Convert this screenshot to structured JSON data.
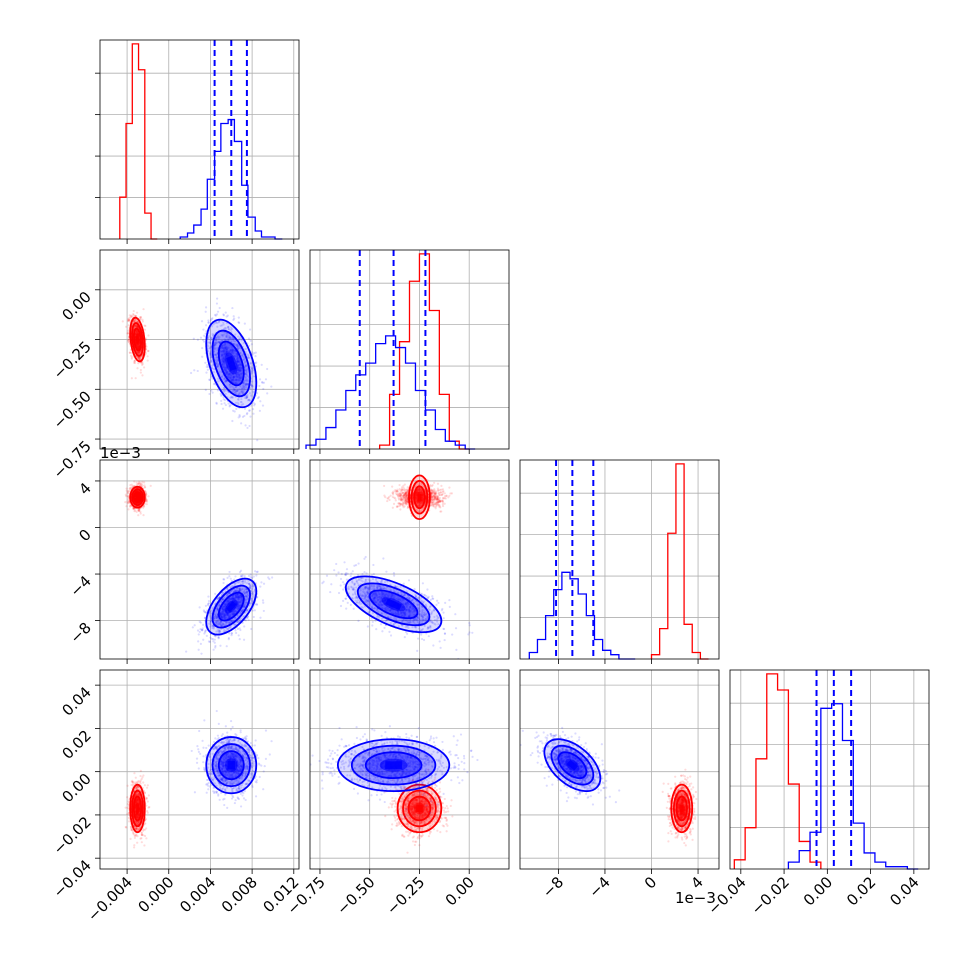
{
  "chart_data": {
    "type": "corner",
    "parameters": 4,
    "series": [
      {
        "color": "#ff0000"
      },
      {
        "color": "#0000ff"
      }
    ],
    "quantile_color": "#0000ff",
    "grid": true,
    "offset_labels": {
      "p2": "1e−3",
      "p3": "1e−3"
    },
    "axes": [
      {
        "range": [
          -0.0066,
          0.0125
        ],
        "ticks": [
          -0.004,
          0.0,
          0.004,
          0.008,
          0.012
        ],
        "tick_labels": [
          "−0.004",
          "0.000",
          "0.004",
          "0.008",
          "0.012"
        ]
      },
      {
        "range": [
          -0.8,
          0.2
        ],
        "ticks": [
          -0.75,
          -0.5,
          -0.25,
          0.0
        ],
        "tick_labels": [
          "−0.75",
          "−0.50",
          "−0.25",
          "0.00"
        ]
      },
      {
        "range": [
          -11.3,
          5.8
        ],
        "ticks": [
          -8,
          -4,
          0,
          4
        ],
        "tick_labels": [
          "−8",
          "−4",
          "0",
          "4"
        ]
      },
      {
        "range": [
          -0.045,
          0.047
        ],
        "ticks": [
          -0.04,
          -0.02,
          0.0,
          0.02,
          0.04
        ],
        "tick_labels": [
          "−0.04",
          "−0.02",
          "0.00",
          "0.02",
          "0.04"
        ]
      }
    ],
    "quantiles_blue": [
      [
        0.0044,
        0.006,
        0.0075
      ],
      [
        -0.55,
        -0.38,
        -0.22
      ],
      [
        -8.2,
        -6.8,
        -5.0
      ],
      [
        -0.005,
        0.003,
        0.011
      ]
    ],
    "histograms": [
      {
        "red": {
          "bins": [
            -0.0047,
            -0.0041,
            -0.0035,
            -0.0029,
            -0.0023,
            -0.0017,
            -0.0011
          ],
          "counts": [
            0.21,
            0.58,
            0.98,
            0.85,
            0.13,
            0.0
          ]
        },
        "blue": {
          "bins": [
            0.0011,
            0.0018,
            0.0024,
            0.0031,
            0.0037,
            0.0044,
            0.005,
            0.0057,
            0.0063,
            0.007,
            0.0076,
            0.0083,
            0.0089,
            0.0096,
            0.0102,
            0.0109
          ],
          "counts": [
            0.01,
            0.03,
            0.07,
            0.15,
            0.3,
            0.44,
            0.58,
            0.6,
            0.49,
            0.27,
            0.11,
            0.04,
            0.01,
            0.01,
            0.0
          ]
        }
      },
      {
        "red": {
          "bins": [
            -0.45,
            -0.4,
            -0.35,
            -0.3,
            -0.25,
            -0.2,
            -0.15,
            -0.1,
            -0.05,
            0.0
          ],
          "counts": [
            0.02,
            0.28,
            0.55,
            0.86,
            1.0,
            0.71,
            0.28,
            0.04,
            0.0
          ]
        },
        "blue": {
          "bins": [
            -0.82,
            -0.77,
            -0.72,
            -0.67,
            -0.62,
            -0.57,
            -0.52,
            -0.47,
            -0.42,
            -0.37,
            -0.32,
            -0.27,
            -0.22,
            -0.17,
            -0.12,
            -0.07,
            -0.02,
            0.03
          ],
          "counts": [
            0.02,
            0.05,
            0.11,
            0.2,
            0.3,
            0.38,
            0.44,
            0.54,
            0.58,
            0.52,
            0.44,
            0.3,
            0.2,
            0.1,
            0.04,
            0.02,
            0.0
          ]
        }
      },
      {
        "red": {
          "bins": [
            0.0,
            0.7,
            1.4,
            2.1,
            2.8,
            3.5,
            4.2,
            4.9
          ],
          "counts": [
            0.02,
            0.14,
            0.58,
            0.9,
            0.16,
            0.03,
            0.0
          ]
        },
        "blue": {
          "bins": [
            -10.5,
            -9.8,
            -9.1,
            -8.4,
            -7.7,
            -7.0,
            -6.3,
            -5.6,
            -4.9,
            -4.2,
            -3.5,
            -2.8,
            -2.1,
            -1.4
          ],
          "counts": [
            0.03,
            0.09,
            0.2,
            0.32,
            0.4,
            0.37,
            0.3,
            0.2,
            0.09,
            0.04,
            0.02,
            0.0,
            0.0
          ]
        }
      },
      {
        "red": {
          "bins": [
            -0.043,
            -0.038,
            -0.033,
            -0.028,
            -0.023,
            -0.018,
            -0.013,
            -0.008,
            -0.003
          ],
          "counts": [
            0.04,
            0.18,
            0.48,
            0.85,
            0.78,
            0.37,
            0.12,
            0.03
          ]
        },
        "blue": {
          "bins": [
            -0.018,
            -0.013,
            -0.008,
            -0.003,
            0.002,
            0.007,
            0.012,
            0.017,
            0.022,
            0.027,
            0.032,
            0.037,
            0.042
          ],
          "counts": [
            0.03,
            0.08,
            0.16,
            0.7,
            0.72,
            0.56,
            0.2,
            0.07,
            0.03,
            0.01,
            0.01,
            0.0
          ]
        }
      }
    ],
    "clusters_2d": [
      {
        "pair": [
          1,
          0
        ],
        "red": {
          "mean": [
            -0.003,
            -0.25
          ],
          "sd": [
            0.00035,
            0.055
          ],
          "rho": -0.3
        },
        "blue": {
          "mean": [
            0.006,
            -0.37
          ],
          "sd": [
            0.0012,
            0.11
          ],
          "rho": -0.45
        }
      },
      {
        "pair": [
          2,
          0
        ],
        "red": {
          "mean": [
            -0.003,
            2.6
          ],
          "sd": [
            0.00035,
            0.45
          ],
          "rho": 0.0
        },
        "blue": {
          "mean": [
            0.006,
            -6.8
          ],
          "sd": [
            0.0012,
            1.2
          ],
          "rho": 0.55
        }
      },
      {
        "pair": [
          2,
          1
        ],
        "red": {
          "mean": [
            -0.25,
            2.6
          ],
          "sd": [
            0.055,
            0.45
          ],
          "rho": 0.0
        },
        "blue": {
          "mean": [
            -0.38,
            -6.6
          ],
          "sd": [
            0.12,
            1.2
          ],
          "rho": -0.6
        }
      },
      {
        "pair": [
          3,
          0
        ],
        "red": {
          "mean": [
            -0.003,
            -0.017
          ],
          "sd": [
            0.00035,
            0.0055
          ],
          "rho": 0.0
        },
        "blue": {
          "mean": [
            0.006,
            0.003
          ],
          "sd": [
            0.0012,
            0.0065
          ],
          "rho": 0.0
        }
      },
      {
        "pair": [
          3,
          1
        ],
        "red": {
          "mean": [
            -0.25,
            -0.017
          ],
          "sd": [
            0.055,
            0.0055
          ],
          "rho": 0.0
        },
        "blue": {
          "mean": [
            -0.38,
            0.003
          ],
          "sd": [
            0.14,
            0.006
          ],
          "rho": 0.0
        }
      },
      {
        "pair": [
          3,
          2
        ],
        "red": {
          "mean": [
            2.6,
            -0.017
          ],
          "sd": [
            0.45,
            0.0055
          ],
          "rho": 0.0
        },
        "blue": {
          "mean": [
            -6.8,
            0.003
          ],
          "sd": [
            1.2,
            0.006
          ],
          "rho": -0.5
        }
      }
    ]
  }
}
